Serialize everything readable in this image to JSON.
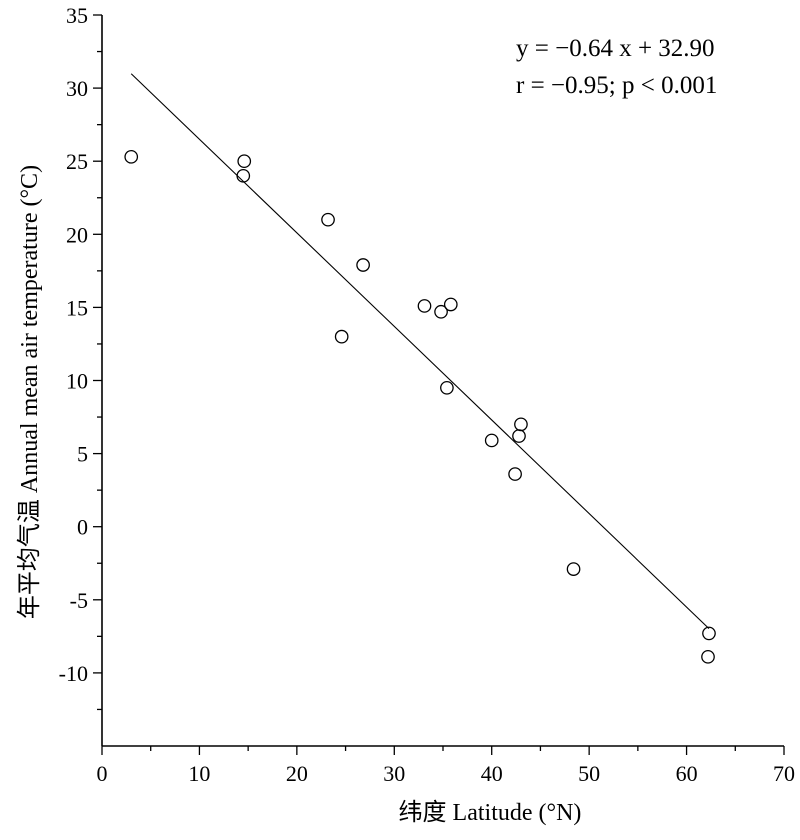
{
  "chart_data": {
    "type": "scatter",
    "xlabel": "纬度  Latitude (°N)",
    "ylabel": "年平均气温 Annual mean air temperature (°C)",
    "xlim": [
      0,
      70
    ],
    "ylim": [
      -15,
      35
    ],
    "x_ticks": [
      0,
      10,
      20,
      30,
      40,
      50,
      60,
      70
    ],
    "y_ticks": [
      -10,
      -5,
      0,
      5,
      10,
      15,
      20,
      25,
      30,
      35
    ],
    "annotations": [
      "y = −0.64 x + 32.90",
      "r = −0.95;  p < 0.001"
    ],
    "regression": {
      "slope": -0.64,
      "intercept": 32.9,
      "x_range": [
        3,
        62.3
      ]
    },
    "points": [
      {
        "x": 3.0,
        "y": 25.3
      },
      {
        "x": 14.6,
        "y": 25.0
      },
      {
        "x": 14.5,
        "y": 24.0
      },
      {
        "x": 23.2,
        "y": 21.0
      },
      {
        "x": 26.8,
        "y": 17.9
      },
      {
        "x": 24.6,
        "y": 13.0
      },
      {
        "x": 33.1,
        "y": 15.1
      },
      {
        "x": 35.8,
        "y": 15.2
      },
      {
        "x": 34.8,
        "y": 14.7
      },
      {
        "x": 35.4,
        "y": 9.5
      },
      {
        "x": 43.0,
        "y": 7.0
      },
      {
        "x": 42.8,
        "y": 6.2
      },
      {
        "x": 40.0,
        "y": 5.9
      },
      {
        "x": 42.4,
        "y": 3.6
      },
      {
        "x": 48.4,
        "y": -2.9
      },
      {
        "x": 62.3,
        "y": -7.3
      },
      {
        "x": 62.2,
        "y": -8.9
      }
    ],
    "grid": false,
    "legend": "none"
  }
}
